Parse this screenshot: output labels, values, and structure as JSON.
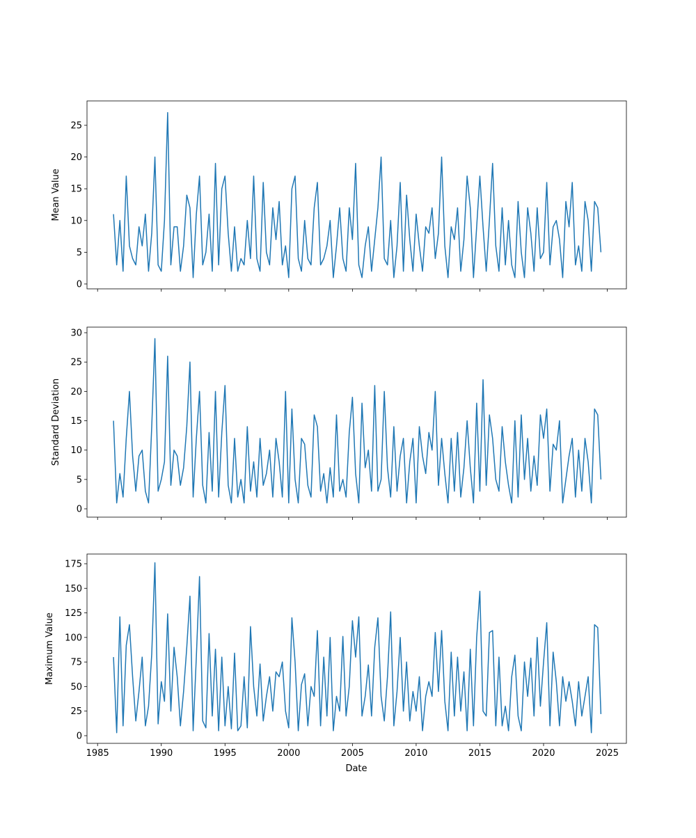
{
  "chart_data": {
    "type": "line",
    "xlabel": "Date",
    "x": [
      1986.25,
      1986.5,
      1986.75,
      1987,
      1987.25,
      1987.5,
      1987.75,
      1988,
      1988.25,
      1988.5,
      1988.75,
      1989,
      1989.25,
      1989.5,
      1989.75,
      1990,
      1990.25,
      1990.5,
      1990.75,
      1991,
      1991.25,
      1991.5,
      1991.75,
      1992,
      1992.25,
      1992.5,
      1992.75,
      1993,
      1993.25,
      1993.5,
      1993.75,
      1994,
      1994.25,
      1994.5,
      1994.75,
      1995,
      1995.25,
      1995.5,
      1995.75,
      1996,
      1996.25,
      1996.5,
      1996.75,
      1997,
      1997.25,
      1997.5,
      1997.75,
      1998,
      1998.25,
      1998.5,
      1998.75,
      1999,
      1999.25,
      1999.5,
      1999.75,
      2000,
      2000.25,
      2000.5,
      2000.75,
      2001,
      2001.25,
      2001.5,
      2001.75,
      2002,
      2002.25,
      2002.5,
      2002.75,
      2003,
      2003.25,
      2003.5,
      2003.75,
      2004,
      2004.25,
      2004.5,
      2004.75,
      2005,
      2005.25,
      2005.5,
      2005.75,
      2006,
      2006.25,
      2006.5,
      2006.75,
      2007,
      2007.25,
      2007.5,
      2007.75,
      2008,
      2008.25,
      2008.5,
      2008.75,
      2009,
      2009.25,
      2009.5,
      2009.75,
      2010,
      2010.25,
      2010.5,
      2010.75,
      2011,
      2011.25,
      2011.5,
      2011.75,
      2012,
      2012.25,
      2012.5,
      2012.75,
      2013,
      2013.25,
      2013.5,
      2013.75,
      2014,
      2014.25,
      2014.5,
      2014.75,
      2015,
      2015.25,
      2015.5,
      2015.75,
      2016,
      2016.25,
      2016.5,
      2016.75,
      2017,
      2017.25,
      2017.5,
      2017.75,
      2018,
      2018.25,
      2018.5,
      2018.75,
      2019,
      2019.25,
      2019.5,
      2019.75,
      2020,
      2020.25,
      2020.5,
      2020.75,
      2021,
      2021.25,
      2021.5,
      2021.75,
      2022,
      2022.25,
      2022.5,
      2022.75,
      2023,
      2023.25,
      2023.5,
      2023.75,
      2024,
      2024.25,
      2024.5
    ],
    "xlim": [
      1984.17,
      2026.5
    ],
    "xticks": [
      1985,
      1990,
      1995,
      2000,
      2005,
      2010,
      2015,
      2020,
      2025
    ],
    "subplots": [
      {
        "ylabel": "Mean Value",
        "color": "#1f77b4",
        "ylim": [
          -0.77,
          28.84
        ],
        "yticks": [
          0,
          5,
          10,
          15,
          20,
          25
        ],
        "values": [
          11,
          3,
          10,
          2,
          17,
          6,
          4,
          3,
          9,
          6,
          11,
          2,
          8,
          20,
          3,
          2,
          10,
          27,
          3,
          9,
          9,
          2,
          6,
          14,
          12,
          1,
          11,
          17,
          3,
          5,
          11,
          2,
          19,
          3,
          15,
          17,
          8,
          2,
          9,
          2,
          4,
          3,
          10,
          4,
          17,
          4,
          2,
          16,
          5,
          3,
          12,
          7,
          13,
          3,
          6,
          1,
          15,
          17,
          4,
          2,
          10,
          4,
          3,
          12,
          16,
          3,
          4,
          6,
          10,
          1,
          6,
          12,
          4,
          2,
          12,
          7,
          19,
          3,
          1,
          6,
          9,
          2,
          7,
          12,
          20,
          4,
          3,
          10,
          1,
          6,
          16,
          2,
          14,
          7,
          2,
          11,
          6,
          2,
          9,
          8,
          12,
          4,
          8,
          20,
          6,
          1,
          9,
          7,
          12,
          2,
          7,
          17,
          12,
          1,
          9,
          17,
          9,
          2,
          10,
          19,
          6,
          2,
          12,
          3,
          10,
          3,
          1,
          13,
          5,
          1,
          12,
          8,
          2,
          12,
          4,
          5,
          16,
          3,
          9,
          10,
          7,
          1,
          13,
          9,
          16,
          3,
          6,
          2,
          13,
          10,
          2,
          13,
          12,
          5
        ]
      },
      {
        "ylabel": "Standard Deviation",
        "color": "#1f77b4",
        "ylim": [
          -1.42,
          30.95
        ],
        "yticks": [
          0,
          5,
          10,
          15,
          20,
          25,
          30
        ],
        "values": [
          15,
          1,
          6,
          2,
          12,
          20,
          9,
          3,
          9,
          10,
          3,
          1,
          14,
          29,
          3,
          5,
          8,
          26,
          4,
          10,
          9,
          4,
          7,
          14,
          25,
          2,
          12,
          20,
          4,
          1,
          13,
          3,
          20,
          2,
          13,
          21,
          4,
          1,
          12,
          2,
          5,
          1,
          14,
          3,
          8,
          2,
          12,
          4,
          6,
          10,
          2,
          12,
          8,
          2,
          20,
          1,
          17,
          5,
          1,
          12,
          11,
          4,
          2,
          16,
          14,
          3,
          6,
          1,
          7,
          2,
          16,
          3,
          5,
          2,
          13,
          19,
          6,
          1,
          18,
          7,
          10,
          3,
          21,
          3,
          5,
          20,
          7,
          2,
          14,
          3,
          9,
          12,
          1,
          8,
          12,
          1,
          14,
          9,
          6,
          13,
          10,
          20,
          4,
          12,
          6,
          1,
          12,
          3,
          13,
          2,
          7,
          15,
          7,
          1,
          18,
          3,
          22,
          4,
          16,
          12,
          5,
          3,
          14,
          8,
          4,
          1,
          15,
          2,
          16,
          5,
          12,
          3,
          9,
          4,
          16,
          12,
          17,
          3,
          11,
          10,
          15,
          1,
          5,
          9,
          12,
          2,
          10,
          3,
          12,
          8,
          1,
          17,
          16,
          5
        ]
      },
      {
        "ylabel": "Maximum Value",
        "color": "#1f77b4",
        "ylim": [
          -7.8,
          184.9
        ],
        "yticks": [
          0,
          25,
          50,
          75,
          100,
          125,
          150,
          175
        ],
        "values": [
          80,
          3,
          121,
          10,
          92,
          113,
          60,
          15,
          45,
          80,
          10,
          30,
          83,
          176,
          12,
          55,
          35,
          124,
          25,
          90,
          60,
          10,
          45,
          90,
          142,
          5,
          80,
          162,
          15,
          8,
          104,
          20,
          88,
          5,
          80,
          10,
          50,
          7,
          84,
          5,
          10,
          60,
          8,
          111,
          50,
          20,
          73,
          15,
          40,
          60,
          25,
          65,
          60,
          75,
          25,
          8,
          120,
          75,
          5,
          52,
          63,
          10,
          50,
          40,
          107,
          10,
          80,
          20,
          100,
          5,
          40,
          25,
          101,
          20,
          50,
          117,
          80,
          121,
          20,
          40,
          72,
          20,
          90,
          120,
          40,
          15,
          60,
          126,
          10,
          45,
          100,
          25,
          75,
          15,
          45,
          25,
          60,
          5,
          40,
          55,
          40,
          105,
          45,
          107,
          35,
          5,
          85,
          20,
          80,
          25,
          65,
          5,
          88,
          10,
          100,
          147,
          25,
          20,
          105,
          107,
          10,
          80,
          10,
          30,
          5,
          60,
          82,
          20,
          5,
          75,
          40,
          79,
          20,
          100,
          30,
          75,
          115,
          10,
          85,
          55,
          10,
          60,
          35,
          55,
          35,
          10,
          55,
          20,
          40,
          60,
          3,
          113,
          110,
          22
        ]
      }
    ]
  }
}
